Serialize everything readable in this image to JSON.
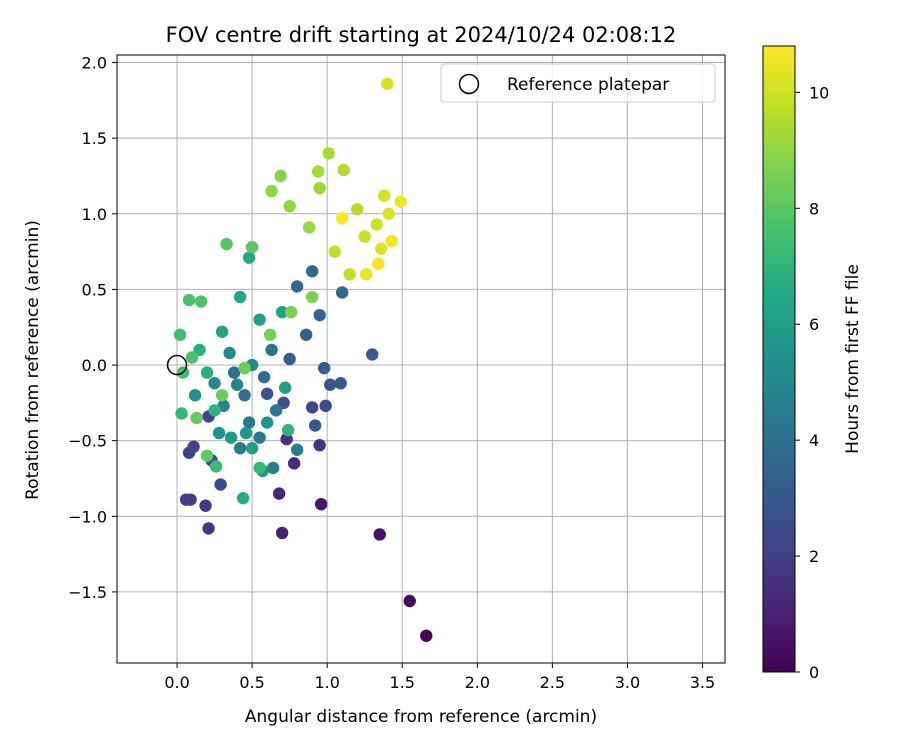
{
  "chart_data": {
    "type": "scatter",
    "title": "FOV centre drift starting at 2024/10/24 02:08:12",
    "xlabel": "Angular distance from reference (arcmin)",
    "ylabel": "Rotation from reference (arcmin)",
    "xlim": [
      -0.4,
      3.65
    ],
    "ylim": [
      -1.97,
      2.05
    ],
    "xticks": [
      0.0,
      0.5,
      1.0,
      1.5,
      2.0,
      2.5,
      3.0,
      3.5
    ],
    "xtick_labels": [
      "0.0",
      "0.5",
      "1.0",
      "1.5",
      "2.0",
      "2.5",
      "3.0",
      "3.5"
    ],
    "yticks": [
      -1.5,
      -1.0,
      -0.5,
      0.0,
      0.5,
      1.0,
      1.5,
      2.0
    ],
    "ytick_labels": [
      "−1.5",
      "−1.0",
      "−0.5",
      "0.0",
      "0.5",
      "1.0",
      "1.5",
      "2.0"
    ],
    "grid": true,
    "legend": {
      "placement": "top-right",
      "entries": [
        "Reference platepar"
      ]
    },
    "colorbar": {
      "label": "Hours from first FF file",
      "range": [
        0,
        10.8
      ],
      "ticks": [
        0,
        2,
        4,
        6,
        8,
        10
      ],
      "tick_labels": [
        "0",
        "2",
        "4",
        "6",
        "8",
        "10"
      ],
      "colormap": "viridis"
    },
    "reference_point": {
      "x": 0.0,
      "y": 0.0
    },
    "series": [
      {
        "color_by": "hours",
        "points": [
          {
            "x": 1.66,
            "y": -1.79,
            "h": 0.1
          },
          {
            "x": 1.55,
            "y": -1.56,
            "h": 0.3
          },
          {
            "x": 1.35,
            "y": -1.12,
            "h": 0.5
          },
          {
            "x": 0.96,
            "y": -0.92,
            "h": 0.7
          },
          {
            "x": 0.7,
            "y": -1.11,
            "h": 1.0
          },
          {
            "x": 0.68,
            "y": -0.85,
            "h": 1.2
          },
          {
            "x": 0.78,
            "y": -0.65,
            "h": 1.4
          },
          {
            "x": 0.73,
            "y": -0.49,
            "h": 1.5
          },
          {
            "x": 0.95,
            "y": -0.53,
            "h": 1.6
          },
          {
            "x": 0.21,
            "y": -1.08,
            "h": 1.7
          },
          {
            "x": 0.19,
            "y": -0.93,
            "h": 1.8
          },
          {
            "x": 0.06,
            "y": -0.89,
            "h": 1.9
          },
          {
            "x": 0.09,
            "y": -0.89,
            "h": 2.0
          },
          {
            "x": 0.08,
            "y": -0.58,
            "h": 2.1
          },
          {
            "x": 0.11,
            "y": -0.54,
            "h": 2.2
          },
          {
            "x": 0.23,
            "y": -0.63,
            "h": 2.3
          },
          {
            "x": 0.29,
            "y": -0.79,
            "h": 2.4
          },
          {
            "x": 0.9,
            "y": -0.28,
            "h": 2.3
          },
          {
            "x": 0.99,
            "y": -0.27,
            "h": 2.5
          },
          {
            "x": 0.21,
            "y": -0.34,
            "h": 2.2
          },
          {
            "x": 0.71,
            "y": -0.25,
            "h": 2.6
          },
          {
            "x": 0.6,
            "y": -0.19,
            "h": 2.7
          },
          {
            "x": 1.02,
            "y": -0.13,
            "h": 2.8
          },
          {
            "x": 1.09,
            "y": -0.12,
            "h": 2.9
          },
          {
            "x": 1.3,
            "y": 0.07,
            "h": 3.1
          },
          {
            "x": 0.98,
            "y": -0.02,
            "h": 3.0
          },
          {
            "x": 0.92,
            "y": -0.4,
            "h": 2.9
          },
          {
            "x": 0.75,
            "y": 0.04,
            "h": 3.2
          },
          {
            "x": 0.86,
            "y": 0.2,
            "h": 3.3
          },
          {
            "x": 0.95,
            "y": 0.33,
            "h": 3.4
          },
          {
            "x": 1.1,
            "y": 0.48,
            "h": 3.5
          },
          {
            "x": 0.8,
            "y": 0.52,
            "h": 3.6
          },
          {
            "x": 0.9,
            "y": 0.62,
            "h": 3.7
          },
          {
            "x": 0.58,
            "y": -0.08,
            "h": 3.8
          },
          {
            "x": 0.45,
            "y": -0.2,
            "h": 3.9
          },
          {
            "x": 0.38,
            "y": -0.05,
            "h": 4.0
          },
          {
            "x": 0.63,
            "y": 0.1,
            "h": 4.1
          },
          {
            "x": 0.66,
            "y": -0.3,
            "h": 4.2
          },
          {
            "x": 0.48,
            "y": -0.38,
            "h": 4.3
          },
          {
            "x": 0.55,
            "y": -0.48,
            "h": 4.4
          },
          {
            "x": 0.42,
            "y": -0.55,
            "h": 4.5
          },
          {
            "x": 0.8,
            "y": -0.56,
            "h": 4.6
          },
          {
            "x": 0.64,
            "y": -0.68,
            "h": 4.7
          },
          {
            "x": 0.31,
            "y": -0.27,
            "h": 4.8
          },
          {
            "x": 0.4,
            "y": -0.13,
            "h": 4.9
          },
          {
            "x": 0.25,
            "y": -0.12,
            "h": 5.0
          },
          {
            "x": 0.35,
            "y": 0.08,
            "h": 5.1
          },
          {
            "x": 0.5,
            "y": 0.0,
            "h": 5.2
          },
          {
            "x": 0.12,
            "y": -0.2,
            "h": 5.3
          },
          {
            "x": 0.28,
            "y": -0.45,
            "h": 5.4
          },
          {
            "x": 0.6,
            "y": -0.38,
            "h": 5.5
          },
          {
            "x": 0.57,
            "y": -0.7,
            "h": 5.6
          },
          {
            "x": 0.46,
            "y": -0.45,
            "h": 5.7
          },
          {
            "x": 0.36,
            "y": -0.48,
            "h": 5.8
          },
          {
            "x": 0.5,
            "y": -0.55,
            "h": 5.9
          },
          {
            "x": 0.72,
            "y": -0.15,
            "h": 6.0
          },
          {
            "x": 0.55,
            "y": 0.3,
            "h": 6.1
          },
          {
            "x": 0.7,
            "y": 0.35,
            "h": 6.2
          },
          {
            "x": 0.3,
            "y": 0.22,
            "h": 6.3
          },
          {
            "x": 0.42,
            "y": 0.45,
            "h": 6.4
          },
          {
            "x": 0.48,
            "y": 0.71,
            "h": 6.5
          },
          {
            "x": 0.44,
            "y": -0.88,
            "h": 6.6
          },
          {
            "x": 0.2,
            "y": -0.05,
            "h": 6.7
          },
          {
            "x": 0.15,
            "y": 0.1,
            "h": 6.8
          },
          {
            "x": 0.25,
            "y": -0.3,
            "h": 6.9
          },
          {
            "x": 0.74,
            "y": -0.43,
            "h": 7.0
          },
          {
            "x": 0.03,
            "y": -0.32,
            "h": 7.1
          },
          {
            "x": 0.55,
            "y": -0.68,
            "h": 7.2
          },
          {
            "x": 0.26,
            "y": -0.67,
            "h": 7.3
          },
          {
            "x": 0.04,
            "y": -0.05,
            "h": 7.4
          },
          {
            "x": 0.02,
            "y": 0.2,
            "h": 7.5
          },
          {
            "x": 0.1,
            "y": 0.05,
            "h": 7.6
          },
          {
            "x": 0.08,
            "y": 0.43,
            "h": 7.7
          },
          {
            "x": 0.16,
            "y": 0.42,
            "h": 7.8
          },
          {
            "x": 0.33,
            "y": 0.8,
            "h": 7.9
          },
          {
            "x": 0.5,
            "y": 0.78,
            "h": 8.0
          },
          {
            "x": 0.2,
            "y": -0.6,
            "h": 8.1
          },
          {
            "x": 0.13,
            "y": -0.35,
            "h": 8.2
          },
          {
            "x": 0.3,
            "y": -0.2,
            "h": 8.3
          },
          {
            "x": 0.45,
            "y": -0.02,
            "h": 8.4
          },
          {
            "x": 0.62,
            "y": 0.2,
            "h": 8.5
          },
          {
            "x": 0.76,
            "y": 0.35,
            "h": 8.6
          },
          {
            "x": 0.9,
            "y": 0.45,
            "h": 8.7
          },
          {
            "x": 0.69,
            "y": 1.25,
            "h": 8.8
          },
          {
            "x": 0.63,
            "y": 1.15,
            "h": 8.9
          },
          {
            "x": 0.75,
            "y": 1.05,
            "h": 9.0
          },
          {
            "x": 0.88,
            "y": 0.91,
            "h": 9.1
          },
          {
            "x": 0.95,
            "y": 1.17,
            "h": 9.2
          },
          {
            "x": 0.94,
            "y": 1.28,
            "h": 9.3
          },
          {
            "x": 1.01,
            "y": 1.4,
            "h": 9.4
          },
          {
            "x": 1.11,
            "y": 1.29,
            "h": 9.5
          },
          {
            "x": 1.2,
            "y": 1.03,
            "h": 9.6
          },
          {
            "x": 1.05,
            "y": 0.75,
            "h": 9.7
          },
          {
            "x": 1.15,
            "y": 0.6,
            "h": 9.8
          },
          {
            "x": 1.25,
            "y": 0.85,
            "h": 9.9
          },
          {
            "x": 1.33,
            "y": 0.93,
            "h": 10.0
          },
          {
            "x": 1.38,
            "y": 1.12,
            "h": 10.1
          },
          {
            "x": 1.41,
            "y": 1.0,
            "h": 10.2
          },
          {
            "x": 1.36,
            "y": 0.77,
            "h": 10.3
          },
          {
            "x": 1.26,
            "y": 0.6,
            "h": 10.4
          },
          {
            "x": 1.49,
            "y": 1.08,
            "h": 10.5
          },
          {
            "x": 1.43,
            "y": 0.82,
            "h": 10.6
          },
          {
            "x": 1.34,
            "y": 0.67,
            "h": 10.7
          },
          {
            "x": 1.1,
            "y": 0.97,
            "h": 10.8
          },
          {
            "x": 1.4,
            "y": 1.86,
            "h": 10.1
          }
        ]
      }
    ]
  }
}
